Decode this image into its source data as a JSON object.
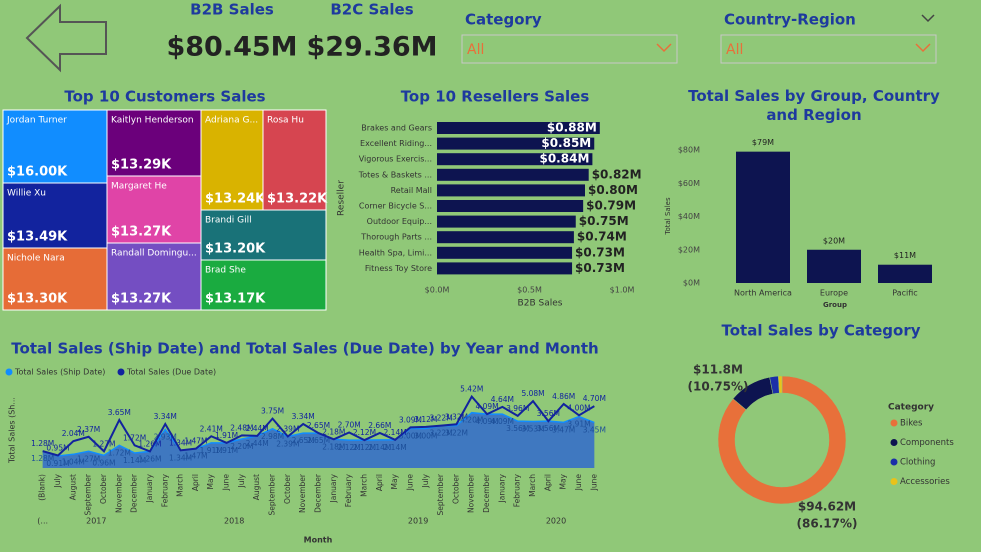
{
  "cards": [
    {
      "label": "B2B Sales",
      "value": "$80.45M"
    },
    {
      "label": "B2C Sales",
      "value": "$29.36M"
    }
  ],
  "slicers": [
    {
      "label": "Category",
      "selection": "All"
    },
    {
      "label": "Country-Region",
      "selection": "All"
    }
  ],
  "chart_data": [
    {
      "type": "treemap",
      "title": "Top 10 Customers Sales",
      "categories": [
        "Jordan Turner",
        "Willie Xu",
        "Nichole Nara",
        "Kaitlyn Henderson",
        "Margaret He",
        "Randall Domingu...",
        "Adriana G...",
        "Rosa Hu",
        "Brandi Gill",
        "Brad She"
      ],
      "values": [
        16.0,
        13.49,
        13.3,
        13.29,
        13.27,
        13.27,
        13.24,
        13.22,
        13.2,
        13.17
      ],
      "value_labels": [
        "$16.00K",
        "$13.49K",
        "$13.30K",
        "$13.29K",
        "$13.27K",
        "$13.27K",
        "$13.24K",
        "$13.22K",
        "$13.20K",
        "$13.17K"
      ],
      "colors": [
        "#118dff",
        "#12239e",
        "#e66c37",
        "#6b007b",
        "#e044a7",
        "#744ec2",
        "#d9b300",
        "#d64550",
        "#197278",
        "#1aab40"
      ]
    },
    {
      "type": "hbar",
      "title": "Top 10 Resellers Sales",
      "xlabel": "B2B Sales",
      "ylabel": "Reseller",
      "categories": [
        "Brakes and Gears",
        "Excellent Riding...",
        "Vigorous Exercis...",
        "Totes & Baskets ...",
        "Retail Mall",
        "Corner Bicycle S...",
        "Outdoor Equip...",
        "Thorough Parts ...",
        "Health Spa, Limi...",
        "Fitness Toy Store"
      ],
      "values": [
        0.88,
        0.85,
        0.84,
        0.82,
        0.8,
        0.79,
        0.75,
        0.74,
        0.73,
        0.73
      ],
      "value_labels": [
        "$0.88M",
        "$0.85M",
        "$0.84M",
        "$0.82M",
        "$0.80M",
        "$0.79M",
        "$0.75M",
        "$0.74M",
        "$0.73M",
        "$0.73M"
      ],
      "color": "#0d1450",
      "xlim": [
        0,
        1
      ],
      "xticks": [
        {
          "value": 0,
          "label": "$0.0M"
        },
        {
          "value": 0.5,
          "label": "$0.5M"
        },
        {
          "value": 1,
          "label": "$1.0M"
        }
      ]
    },
    {
      "type": "bar",
      "title": "Total Sales by Group, Country and Region",
      "xlabel": "Group",
      "ylabel": "Total Sales",
      "categories": [
        "North America",
        "Europe",
        "Pacific"
      ],
      "values": [
        79,
        20,
        11
      ],
      "value_labels": [
        "$79M",
        "$20M",
        "$11M"
      ],
      "color": "#0d1450",
      "ylim": [
        0,
        80
      ],
      "yticks": [
        {
          "value": 0,
          "label": "$0M"
        },
        {
          "value": 20,
          "label": "$20M"
        },
        {
          "value": 40,
          "label": "$40M"
        },
        {
          "value": 60,
          "label": "$60M"
        },
        {
          "value": 80,
          "label": "$80M"
        }
      ]
    },
    {
      "type": "area",
      "title": "Total Sales (Ship Date) and Total Sales (Due Date) by Year and Month",
      "xlabel": "Month",
      "ylabel": "Total Sales (Sh...",
      "categories": [
        "(Blank)",
        "July",
        "August",
        "September",
        "October",
        "November",
        "December",
        "January",
        "February",
        "March",
        "April",
        "May",
        "June",
        "July",
        "August",
        "September",
        "October",
        "November",
        "December",
        "January",
        "February",
        "March",
        "April",
        "May",
        "June",
        "July",
        "September",
        "October",
        "November",
        "December",
        "January",
        "February",
        "March",
        "April",
        "May",
        "June",
        "June"
      ],
      "years": [
        "(...",
        "2017",
        "2018",
        "2019",
        "2020"
      ],
      "ylim": [
        0,
        6
      ],
      "series": [
        {
          "name": "Total Sales (Ship Date)",
          "color": "#118dff",
          "fill": "#3f78c0",
          "values": [
            1.28,
            0.91,
            1.04,
            1.27,
            0.96,
            1.72,
            1.14,
            1.26,
            2.93,
            1.34,
            1.47,
            1.91,
            1.91,
            2.2,
            2.44,
            2.98,
            2.39,
            2.65,
            2.65,
            2.18,
            2.12,
            2.12,
            2.14,
            2.14,
            3.0,
            3.0,
            3.22,
            3.22,
            4.2,
            4.09,
            4.09,
            3.56,
            3.53,
            3.56,
            3.47,
            3.91,
            3.45
          ],
          "value_labels": [
            "1.28M",
            "0.91M",
            "1.04M",
            "1.27M",
            "0.96M",
            "1.72M",
            "1.14M",
            "1.26M",
            "2.93M",
            "1.34M",
            "1.47M",
            "1.91M",
            "1.91M",
            "2.20M",
            "2.44M",
            "2.98M",
            "2.39M",
            "2.65M",
            "2.65M",
            "2.18M",
            "2.12M",
            "2.12M",
            "2.14M",
            "2.14M",
            "3.00M",
            "3.00M",
            "3.22M",
            "3.22M",
            "4.20M",
            "4.09M",
            "4.09M",
            "3.56M",
            "3.53M",
            "3.56M",
            "3.47M",
            "3.91M",
            "3.45M"
          ]
        },
        {
          "name": "Total Sales (Due Date)",
          "color": "#12239e",
          "values": [
            1.28,
            0.95,
            2.04,
            2.37,
            1.27,
            3.65,
            1.72,
            1.26,
            3.34,
            1.34,
            1.47,
            2.41,
            1.91,
            2.48,
            2.44,
            3.75,
            2.39,
            3.34,
            2.65,
            2.18,
            2.7,
            2.12,
            2.66,
            2.14,
            3.09,
            3.12,
            3.22,
            3.32,
            5.42,
            4.09,
            4.64,
            3.96,
            5.08,
            3.56,
            4.86,
            4.0,
            4.7
          ],
          "value_labels": [
            "1.28M",
            "0.95M",
            "2.04M",
            "2.37M",
            "1.27M",
            "3.65M",
            "1.72M",
            "1.26M",
            "3.34M",
            "1.34M",
            "1.47M",
            "2.41M",
            "1.91M",
            "2.48M",
            "2.44M",
            "3.75M",
            "2.39M",
            "3.34M",
            "2.65M",
            "2.18M",
            "2.70M",
            "2.12M",
            "2.66M",
            "2.14M",
            "3.09M",
            "3.12M",
            "3.22M",
            "3.32M",
            "5.42M",
            "4.09M",
            "4.64M",
            "3.96M",
            "5.08M",
            "3.56M",
            "4.86M",
            "4.00M",
            "4.70M"
          ]
        }
      ]
    },
    {
      "type": "donut",
      "title": "Total Sales by Category",
      "legend_title": "Category",
      "categories": [
        "Bikes",
        "Components",
        "Clothing",
        "Accessories"
      ],
      "values": [
        94.62,
        11.8,
        2.4,
        1.0
      ],
      "value_labels": [
        "$94.62M",
        "$11.8M",
        null,
        null
      ],
      "percent_labels": [
        "(86.17%)",
        "(10.75%)",
        null,
        null
      ],
      "colors": [
        "#e8703a",
        "#0d1450",
        "#1b2fa8",
        "#e8c21a"
      ]
    }
  ]
}
